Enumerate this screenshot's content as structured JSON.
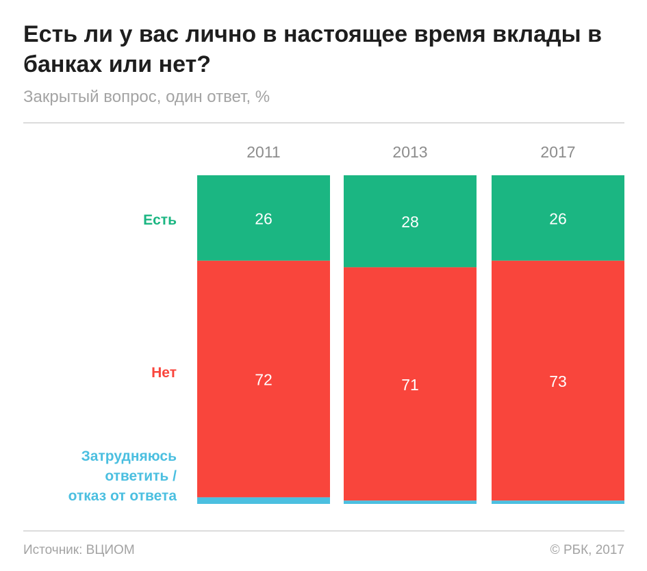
{
  "title": "Есть ли у вас лично в настоящее время вклады в банках или нет?",
  "subtitle": "Закрытый вопрос, один ответ, %",
  "source": "Источник: ВЦИОМ",
  "credit": "© РБК, 2017",
  "colors": {
    "yes": "#1bb682",
    "no": "#f9453c",
    "hard": "#4bbfe0",
    "axis_text": "#8c8c8c",
    "value_text": "#ffffff"
  },
  "chart_data": {
    "type": "bar",
    "stacked": true,
    "orientation": "vertical",
    "categories": [
      "2011",
      "2013",
      "2017"
    ],
    "series": [
      {
        "name": "Есть",
        "values": [
          26,
          28,
          26
        ],
        "color": "#1bb682"
      },
      {
        "name": "Нет",
        "values": [
          72,
          71,
          73
        ],
        "color": "#f9453c"
      },
      {
        "name": "Затрудняюсь ответить / отказ от ответа",
        "values": [
          2,
          1,
          1
        ],
        "color": "#4bbfe0"
      }
    ],
    "ylim": [
      0,
      100
    ],
    "series_labels": {
      "yes": "Есть",
      "no": "Нет",
      "hard_lines": [
        "Затрудняюсь",
        "ответить /",
        "отказ от ответа"
      ]
    },
    "data_labels": [
      {
        "series": 0,
        "show": [
          true,
          true,
          true
        ]
      },
      {
        "series": 1,
        "show": [
          true,
          true,
          true
        ]
      },
      {
        "series": 2,
        "show": [
          false,
          false,
          false
        ]
      }
    ],
    "grid": false,
    "legend": "left"
  }
}
